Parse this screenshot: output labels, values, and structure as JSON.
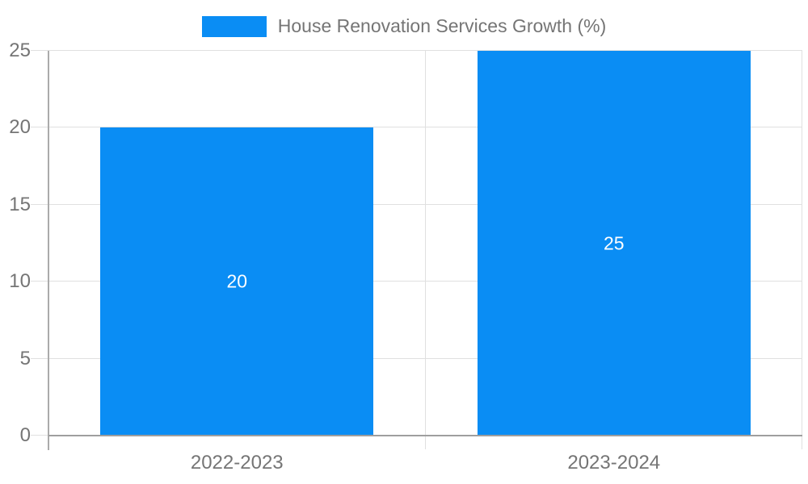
{
  "chart_data": {
    "type": "bar",
    "title": "House Renovation Services Growth (%)",
    "xlabel": "",
    "ylabel": "",
    "categories": [
      "2022-2023",
      "2023-2024"
    ],
    "series": [
      {
        "name": "House Renovation Services Growth (%)",
        "values": [
          20,
          25
        ]
      }
    ],
    "data_labels": [
      "20",
      "25"
    ],
    "ylim": [
      0,
      25
    ],
    "yticks": [
      0,
      5,
      10,
      15,
      20,
      25
    ],
    "grid": true,
    "legend_position": "top-center",
    "colors": {
      "bar": "#0a8df4",
      "data_label": "#ffffff",
      "axis_text": "#757575",
      "gridline": "#e0e0e0",
      "axis_line": "#ababab",
      "baseline": "#9e9e9e",
      "background": "#ffffff"
    }
  }
}
